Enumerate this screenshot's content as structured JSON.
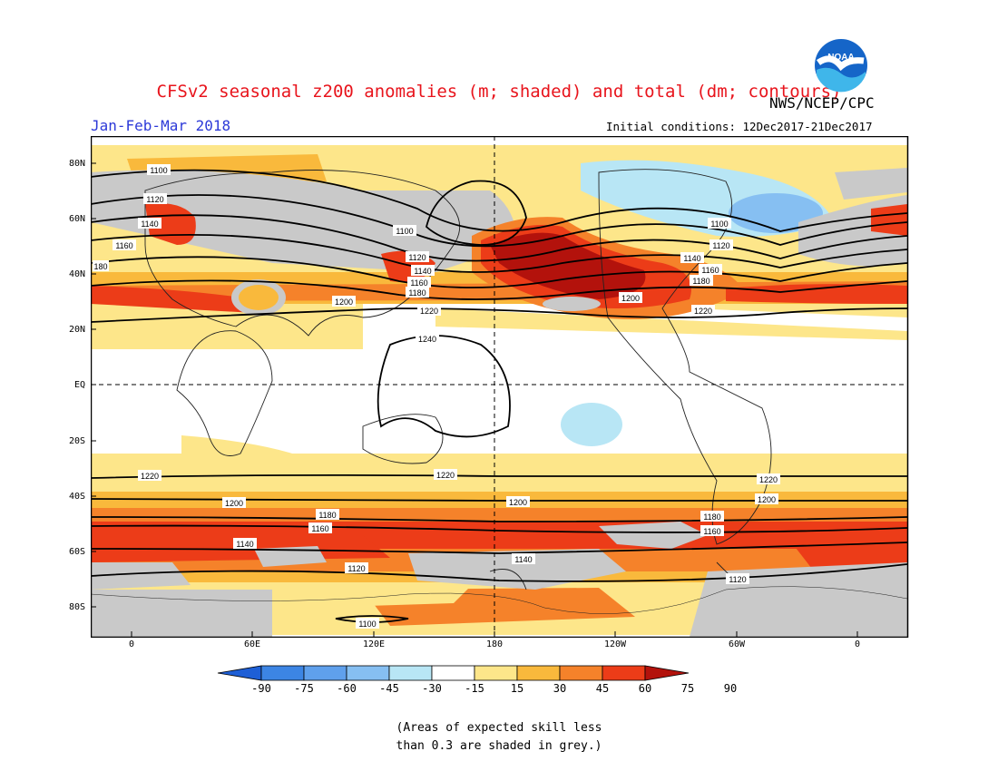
{
  "title": "CFSv2 seasonal z200 anomalies (m; shaded) and total (dm; contours)",
  "period": "Jan-Feb-Mar 2018",
  "agency": "NWS/NCEP/CPC",
  "logo_text": "NOAA",
  "initial_conditions": "Initial conditions: 12Dec2017-21Dec2017",
  "lat_labels": [
    "80N",
    "60N",
    "40N",
    "20N",
    "EQ",
    "20S",
    "40S",
    "60S",
    "80S"
  ],
  "lon_labels": [
    "0",
    "60E",
    "120E",
    "180",
    "120W",
    "60W",
    "0"
  ],
  "colorbar": {
    "labels": [
      "-90",
      "-75",
      "-60",
      "-45",
      "-30",
      "-15",
      "15",
      "30",
      "45",
      "60",
      "75",
      "90"
    ],
    "colors": [
      "#1e5fd6",
      "#3c85e4",
      "#5fa0ec",
      "#86bff2",
      "#b8e6f5",
      "#ffffff",
      "#fde68a",
      "#f9b93c",
      "#f5822a",
      "#ec3c18",
      "#b3120c"
    ]
  },
  "contour_labels": {
    "nh": [
      "1100",
      "1120",
      "1140",
      "1160",
      "1180",
      "1200",
      "1220",
      "1240"
    ],
    "sh": [
      "1220",
      "1200",
      "1180",
      "1160",
      "1140",
      "1120",
      "1100"
    ],
    "edge": "180"
  },
  "skill_note": "(Areas of expected skill less\nthan 0.3 are shaded in grey.)"
}
